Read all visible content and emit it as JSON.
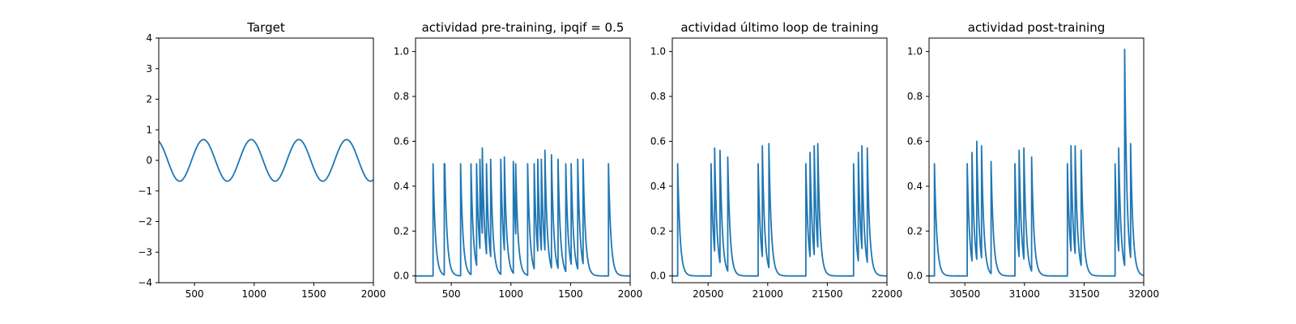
{
  "chart_data": [
    {
      "type": "line",
      "title": "Target",
      "xlim": [
        200,
        2000
      ],
      "ylim": [
        -4,
        4
      ],
      "xticks": [
        500,
        1000,
        1500,
        2000
      ],
      "yticks": [
        -4,
        -3,
        -2,
        -1,
        0,
        1,
        2,
        3,
        4
      ],
      "line_color": "#1f77b4",
      "series": [
        {
          "kind": "sine",
          "amplitude": 0.68,
          "period": 400,
          "peak_at": 575,
          "x_range": [
            200,
            2000
          ]
        }
      ]
    },
    {
      "type": "line",
      "title": "actividad pre-training, ipqif = 0.5",
      "xlim": [
        200,
        2000
      ],
      "ylim": [
        -0.03,
        1.06
      ],
      "xticks": [
        500,
        1000,
        1500,
        2000
      ],
      "yticks": [
        0.0,
        0.2,
        0.4,
        0.6,
        0.8,
        1.0
      ],
      "line_color": "#1f77b4",
      "series": [
        {
          "kind": "spike_train",
          "tau": 20,
          "spikes": [
            [
              347,
              0.5
            ],
            [
              441,
              0.5
            ],
            [
              445,
              0.5
            ],
            [
              578,
              0.5
            ],
            [
              665,
              0.5
            ],
            [
              712,
              0.5
            ],
            [
              740,
              0.52
            ],
            [
              760,
              0.57
            ],
            [
              795,
              0.5
            ],
            [
              830,
              0.52
            ],
            [
              915,
              0.52
            ],
            [
              945,
              0.53
            ],
            [
              1020,
              0.51
            ],
            [
              1040,
              0.5
            ],
            [
              1140,
              0.5
            ],
            [
              1195,
              0.5
            ],
            [
              1225,
              0.52
            ],
            [
              1255,
              0.52
            ],
            [
              1285,
              0.56
            ],
            [
              1340,
              0.54
            ],
            [
              1395,
              0.52
            ],
            [
              1460,
              0.5
            ],
            [
              1505,
              0.5
            ],
            [
              1560,
              0.52
            ],
            [
              1605,
              0.52
            ],
            [
              1818,
              0.5
            ]
          ]
        }
      ]
    },
    {
      "type": "line",
      "title": "actividad último loop de training",
      "xlim": [
        20200,
        22000
      ],
      "ylim": [
        -0.03,
        1.06
      ],
      "xticks": [
        20500,
        21000,
        21500,
        22000
      ],
      "yticks": [
        0.0,
        0.2,
        0.4,
        0.6,
        0.8,
        1.0
      ],
      "line_color": "#1f77b4",
      "series": [
        {
          "kind": "spike_train",
          "tau": 20,
          "spikes": [
            [
              20245,
              0.5
            ],
            [
              20525,
              0.5
            ],
            [
              20555,
              0.57
            ],
            [
              20600,
              0.56
            ],
            [
              20665,
              0.53
            ],
            [
              20920,
              0.5
            ],
            [
              20955,
              0.58
            ],
            [
              21010,
              0.59
            ],
            [
              21320,
              0.5
            ],
            [
              21355,
              0.55
            ],
            [
              21390,
              0.58
            ],
            [
              21420,
              0.59
            ],
            [
              21720,
              0.5
            ],
            [
              21760,
              0.55
            ],
            [
              21790,
              0.58
            ],
            [
              21835,
              0.57
            ]
          ]
        }
      ]
    },
    {
      "type": "line",
      "title": "actividad post-training",
      "xlim": [
        30200,
        32000
      ],
      "ylim": [
        -0.03,
        1.06
      ],
      "xticks": [
        30500,
        31000,
        31500,
        32000
      ],
      "yticks": [
        0.0,
        0.2,
        0.4,
        0.6,
        0.8,
        1.0
      ],
      "line_color": "#1f77b4",
      "series": [
        {
          "kind": "spike_train",
          "tau": 20,
          "spikes": [
            [
              30245,
              0.5
            ],
            [
              30520,
              0.5
            ],
            [
              30560,
              0.55
            ],
            [
              30600,
              0.6
            ],
            [
              30640,
              0.58
            ],
            [
              30720,
              0.51
            ],
            [
              30920,
              0.5
            ],
            [
              30955,
              0.56
            ],
            [
              30995,
              0.57
            ],
            [
              31060,
              0.53
            ],
            [
              31360,
              0.5
            ],
            [
              31390,
              0.58
            ],
            [
              31425,
              0.58
            ],
            [
              31475,
              0.56
            ],
            [
              31760,
              0.5
            ],
            [
              31790,
              0.57
            ],
            [
              31840,
              1.01
            ],
            [
              31890,
              0.59
            ]
          ]
        }
      ]
    }
  ]
}
